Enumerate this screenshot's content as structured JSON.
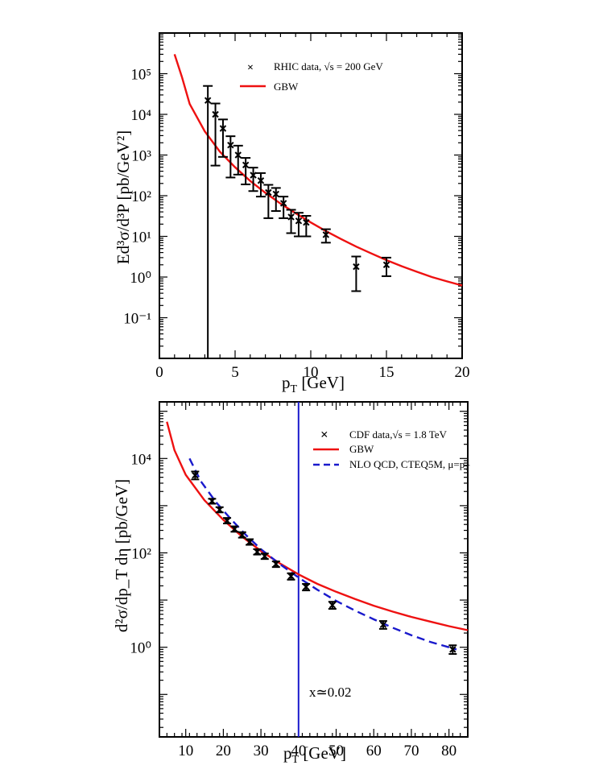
{
  "chart_data": [
    {
      "type": "scatter",
      "id": "top",
      "xlim": [
        0,
        20
      ],
      "ylim_log10": [
        -2,
        6
      ],
      "xticks": [
        0,
        5,
        10,
        15,
        20
      ],
      "yticks_log10": [
        -1,
        0,
        1,
        2,
        3,
        4,
        5
      ],
      "xtick_labels": [
        "0",
        "5",
        "10",
        "15",
        "20"
      ],
      "xlabel": "p",
      "xlabel_sub": "T",
      "xlabel_unit": " [GeV]",
      "ylabel": "Ed³σ/d³P [pb/GeV²]",
      "legend": {
        "data_label": "RHIC data, √s  = 200 GeV",
        "curve_label": "GBW"
      },
      "series": [
        {
          "name": "RHIC data",
          "kind": "points",
          "color": "#000000",
          "points": [
            {
              "x": 3.2,
              "y": 22000,
              "lo": 0.001,
              "hi": 50000
            },
            {
              "x": 3.7,
              "y": 10000,
              "lo": 550,
              "hi": 18500
            },
            {
              "x": 4.2,
              "y": 4500,
              "lo": 900,
              "hi": 7500
            },
            {
              "x": 4.7,
              "y": 1750,
              "lo": 280,
              "hi": 2900
            },
            {
              "x": 5.2,
              "y": 1000,
              "lo": 330,
              "hi": 1700
            },
            {
              "x": 5.7,
              "y": 570,
              "lo": 190,
              "hi": 850
            },
            {
              "x": 6.2,
              "y": 320,
              "lo": 130,
              "hi": 490
            },
            {
              "x": 6.7,
              "y": 235,
              "lo": 95,
              "hi": 360
            },
            {
              "x": 7.2,
              "y": 120,
              "lo": 28,
              "hi": 185
            },
            {
              "x": 7.7,
              "y": 110,
              "lo": 42,
              "hi": 155
            },
            {
              "x": 8.2,
              "y": 65,
              "lo": 28,
              "hi": 95
            },
            {
              "x": 8.7,
              "y": 30,
              "lo": 12,
              "hi": 45
            },
            {
              "x": 9.2,
              "y": 24,
              "lo": 10,
              "hi": 38
            },
            {
              "x": 9.7,
              "y": 22,
              "lo": 10,
              "hi": 32
            },
            {
              "x": 11.0,
              "y": 11,
              "lo": 7,
              "hi": 15
            },
            {
              "x": 13.0,
              "y": 1.8,
              "lo": 0.45,
              "hi": 3.2
            },
            {
              "x": 15.0,
              "y": 2.0,
              "lo": 1.05,
              "hi": 3.0
            }
          ]
        },
        {
          "name": "GBW",
          "kind": "line",
          "color": "#ee1111",
          "points": [
            {
              "x": 1.0,
              "y": 300000
            },
            {
              "x": 1.5,
              "y": 80000
            },
            {
              "x": 2.0,
              "y": 18000
            },
            {
              "x": 3.0,
              "y": 3800
            },
            {
              "x": 4.0,
              "y": 1200
            },
            {
              "x": 5.0,
              "y": 500
            },
            {
              "x": 6.0,
              "y": 230
            },
            {
              "x": 7.0,
              "y": 118
            },
            {
              "x": 8.0,
              "y": 64
            },
            {
              "x": 9.0,
              "y": 37
            },
            {
              "x": 10.0,
              "y": 22
            },
            {
              "x": 11.0,
              "y": 13.5
            },
            {
              "x": 12.0,
              "y": 8.6
            },
            {
              "x": 13.0,
              "y": 5.6
            },
            {
              "x": 14.0,
              "y": 3.8
            },
            {
              "x": 15.0,
              "y": 2.6
            },
            {
              "x": 16.0,
              "y": 1.85
            },
            {
              "x": 17.0,
              "y": 1.35
            },
            {
              "x": 18.0,
              "y": 1.0
            },
            {
              "x": 19.0,
              "y": 0.78
            },
            {
              "x": 20.0,
              "y": 0.62
            }
          ]
        }
      ]
    },
    {
      "type": "scatter",
      "id": "bottom",
      "xlim": [
        3,
        85
      ],
      "ylim_log10": [
        -1.9,
        5.2
      ],
      "xticks": [
        10,
        20,
        30,
        40,
        50,
        60,
        70,
        80
      ],
      "yticks_log10": [
        0,
        2,
        4
      ],
      "xtick_labels": [
        "10",
        "20",
        "30",
        "40",
        "50",
        "60",
        "70",
        "80"
      ],
      "xlabel": "p",
      "xlabel_sub": "T",
      "xlabel_unit": " [GeV]",
      "ylabel": "d²σ/dp_T dη [pb/GeV]",
      "vline_x": 40,
      "vline_color": "#1a1acc",
      "annotation": "x≃0.02",
      "legend": {
        "data_label": "CDF data,√s  = 1.8 TeV",
        "curve_label": "GBW",
        "nlo_label": "NLO QCD, CTEQ5M, μ=p",
        "nlo_label_sub": "T"
      },
      "series": [
        {
          "name": "CDF data",
          "kind": "points",
          "color": "#000000",
          "points": [
            {
              "x": 12.5,
              "y": 4400,
              "lo": 3600,
              "hi": 5300
            },
            {
              "x": 17.0,
              "y": 1250,
              "lo": 1100,
              "hi": 1400
            },
            {
              "x": 19.0,
              "y": 820,
              "lo": 720,
              "hi": 930
            },
            {
              "x": 21.0,
              "y": 480,
              "lo": 420,
              "hi": 550
            },
            {
              "x": 23.0,
              "y": 320,
              "lo": 280,
              "hi": 365
            },
            {
              "x": 25.0,
              "y": 240,
              "lo": 210,
              "hi": 275
            },
            {
              "x": 27.0,
              "y": 170,
              "lo": 148,
              "hi": 195
            },
            {
              "x": 29.0,
              "y": 105,
              "lo": 92,
              "hi": 120
            },
            {
              "x": 31.0,
              "y": 85,
              "lo": 74,
              "hi": 97
            },
            {
              "x": 34.0,
              "y": 58,
              "lo": 50,
              "hi": 66
            },
            {
              "x": 38.0,
              "y": 32,
              "lo": 27,
              "hi": 37
            },
            {
              "x": 42.0,
              "y": 19,
              "lo": 16,
              "hi": 22
            },
            {
              "x": 49.0,
              "y": 7.8,
              "lo": 6.5,
              "hi": 9.2
            },
            {
              "x": 62.5,
              "y": 3.0,
              "lo": 2.45,
              "hi": 3.6
            },
            {
              "x": 81.0,
              "y": 0.9,
              "lo": 0.72,
              "hi": 1.1
            }
          ]
        },
        {
          "name": "GBW",
          "kind": "line",
          "color": "#ee1111",
          "points": [
            {
              "x": 5.0,
              "y": 60000
            },
            {
              "x": 7.0,
              "y": 15000
            },
            {
              "x": 10.0,
              "y": 4500
            },
            {
              "x": 15.0,
              "y": 1300
            },
            {
              "x": 20.0,
              "y": 500
            },
            {
              "x": 25.0,
              "y": 220
            },
            {
              "x": 30.0,
              "y": 110
            },
            {
              "x": 35.0,
              "y": 60
            },
            {
              "x": 40.0,
              "y": 35
            },
            {
              "x": 45.0,
              "y": 22
            },
            {
              "x": 50.0,
              "y": 15
            },
            {
              "x": 55.0,
              "y": 10.5
            },
            {
              "x": 60.0,
              "y": 7.6
            },
            {
              "x": 65.0,
              "y": 5.7
            },
            {
              "x": 70.0,
              "y": 4.4
            },
            {
              "x": 75.0,
              "y": 3.5
            },
            {
              "x": 80.0,
              "y": 2.8
            },
            {
              "x": 85.0,
              "y": 2.3
            }
          ]
        },
        {
          "name": "NLO QCD, CTEQ5M",
          "kind": "dashed",
          "color": "#1a1acc",
          "points": [
            {
              "x": 11.0,
              "y": 10000
            },
            {
              "x": 14.0,
              "y": 3300
            },
            {
              "x": 18.0,
              "y": 1200
            },
            {
              "x": 22.0,
              "y": 520
            },
            {
              "x": 26.0,
              "y": 240
            },
            {
              "x": 30.0,
              "y": 120
            },
            {
              "x": 35.0,
              "y": 58
            },
            {
              "x": 40.0,
              "y": 30
            },
            {
              "x": 45.0,
              "y": 16.5
            },
            {
              "x": 50.0,
              "y": 9.6
            },
            {
              "x": 55.0,
              "y": 6.0
            },
            {
              "x": 60.0,
              "y": 3.9
            },
            {
              "x": 65.0,
              "y": 2.6
            },
            {
              "x": 70.0,
              "y": 1.8
            },
            {
              "x": 75.0,
              "y": 1.3
            },
            {
              "x": 80.0,
              "y": 1.0
            },
            {
              "x": 82.0,
              "y": 0.9
            }
          ]
        }
      ]
    }
  ]
}
